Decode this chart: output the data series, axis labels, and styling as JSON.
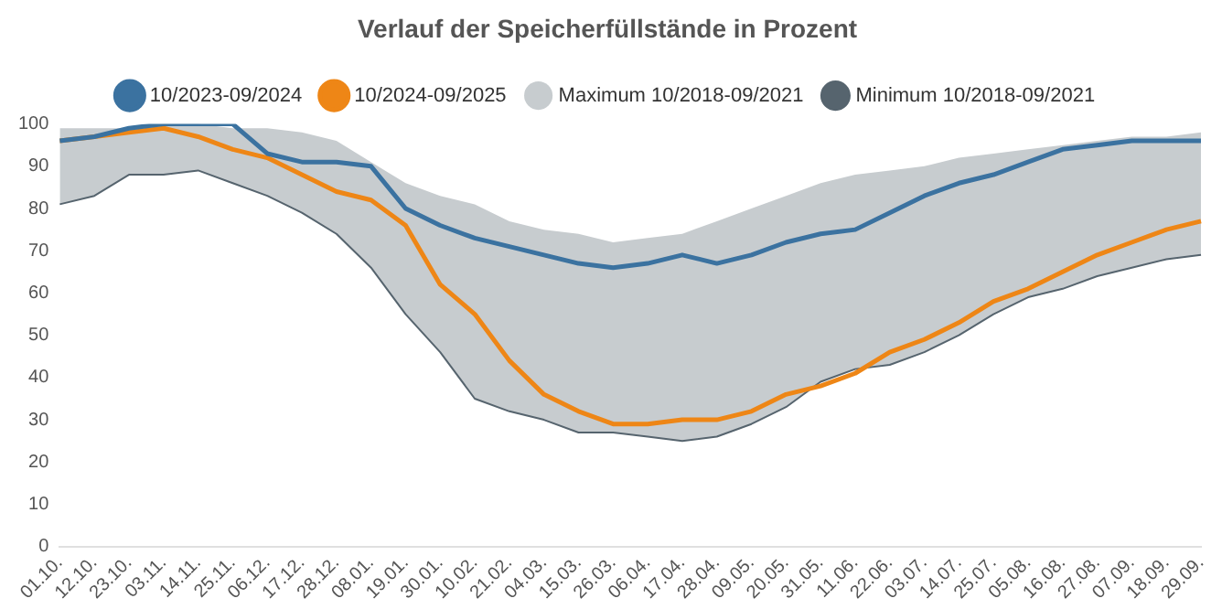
{
  "chart_data": {
    "type": "line",
    "title": "Verlauf der Speicherfüllstände in Prozent",
    "categories": [
      "01.10.",
      "12.10.",
      "23.10.",
      "03.11.",
      "14.11.",
      "25.11.",
      "06.12.",
      "17.12.",
      "28.12.",
      "08.01.",
      "19.01.",
      "30.01.",
      "10.02.",
      "21.02.",
      "04.03.",
      "15.03.",
      "26.03.",
      "06.04.",
      "17.04.",
      "28.04.",
      "09.05.",
      "20.05.",
      "31.05.",
      "11.06.",
      "22.06.",
      "03.07.",
      "14.07.",
      "25.07.",
      "05.08.",
      "16.08.",
      "27.08.",
      "07.09.",
      "18.09.",
      "29.09."
    ],
    "series": [
      {
        "name": "10/2023-09/2024",
        "type": "line",
        "color": "#3b72a0",
        "values": [
          96,
          97,
          99,
          100,
          100,
          100,
          93,
          91,
          91,
          90,
          80,
          76,
          73,
          71,
          69,
          67,
          66,
          67,
          69,
          67,
          69,
          72,
          74,
          75,
          79,
          83,
          86,
          88,
          91,
          94,
          95,
          96,
          96,
          96
        ]
      },
      {
        "name": "10/2024-09/2025",
        "type": "line",
        "color": "#ee8616",
        "values": [
          96,
          97,
          98,
          99,
          97,
          94,
          92,
          88,
          84,
          82,
          76,
          62,
          55,
          44,
          36,
          32,
          29,
          29,
          30,
          30,
          32,
          36,
          38,
          41,
          46,
          49,
          53,
          58,
          61,
          65,
          69,
          72,
          75,
          77
        ]
      },
      {
        "name": "Maximum 10/2018-09/2021",
        "type": "area",
        "color": "#c7cccf",
        "values": [
          99,
          99,
          99,
          100,
          100,
          99,
          99,
          98,
          96,
          91,
          86,
          83,
          81,
          77,
          75,
          74,
          72,
          73,
          74,
          77,
          80,
          83,
          86,
          88,
          89,
          90,
          92,
          93,
          94,
          95,
          96,
          97,
          97,
          98
        ]
      },
      {
        "name": "Minimum 10/2018-09/2021",
        "type": "line",
        "color": "#56646e",
        "values": [
          81,
          83,
          88,
          88,
          89,
          86,
          83,
          79,
          74,
          66,
          55,
          46,
          35,
          32,
          30,
          27,
          27,
          26,
          25,
          26,
          29,
          33,
          39,
          42,
          43,
          46,
          50,
          55,
          59,
          61,
          64,
          66,
          68,
          69
        ]
      }
    ],
    "ylim": [
      0,
      100
    ],
    "yticks": [
      0,
      10,
      20,
      30,
      40,
      50,
      60,
      70,
      80,
      90,
      100
    ],
    "grid": false,
    "legend": "top",
    "marker": "none",
    "line_style": "solid"
  }
}
